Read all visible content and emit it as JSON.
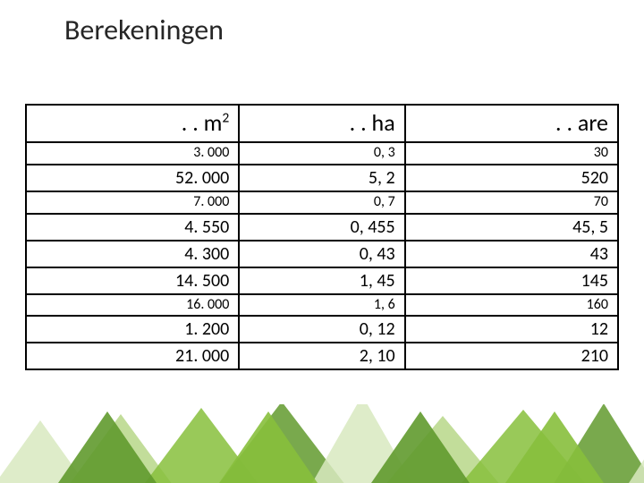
{
  "title": "Berekeningen",
  "table": {
    "columns": [
      {
        "label_prefix": ". . m",
        "label_sup": "2"
      },
      {
        "label": ". . ha"
      },
      {
        "label": ". . are"
      }
    ],
    "rows": [
      {
        "m2": "3. 000",
        "ha": "0, 3",
        "are": "30",
        "size": "sm"
      },
      {
        "m2": "52. 000",
        "ha": "5, 2",
        "are": "520",
        "size": "md"
      },
      {
        "m2": "7. 000",
        "ha": "0, 7",
        "are": "70",
        "size": "sm"
      },
      {
        "m2": "4. 550",
        "ha": "0, 455",
        "are": "45, 5",
        "size": "md"
      },
      {
        "m2": "4. 300",
        "ha": "0, 43",
        "are": "43",
        "size": "md2"
      },
      {
        "m2": "14. 500",
        "ha": "1, 45",
        "are": "145",
        "size": "md"
      },
      {
        "m2": "16. 000",
        "ha": "1, 6",
        "are": "160",
        "size": "sm"
      },
      {
        "m2": "1. 200",
        "ha": "0, 12",
        "are": "12",
        "size": "md2"
      },
      {
        "m2": "21. 000",
        "ha": "2, 10",
        "are": "210",
        "size": "md"
      }
    ]
  },
  "colors": {
    "tri_dark": "#619a2e",
    "tri_mid": "#87bf3c",
    "tri_light": "#b7d788",
    "tri_pale": "#d8e9c0"
  }
}
